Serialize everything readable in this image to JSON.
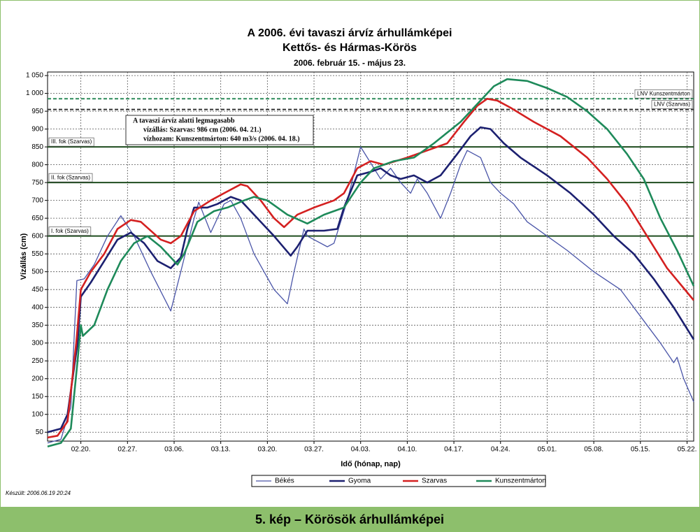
{
  "chart_data": {
    "type": "line",
    "title": [
      "A 2006. évi tavaszi árvíz árhullámképei",
      "Kettős- és Hármas-Körös"
    ],
    "subtitle": "2006. február 15. - május 23.",
    "ylabel": "Vízállás (cm)",
    "xlabel": "Idő (hónap, nap)",
    "xlim": [
      0,
      97
    ],
    "xticks": [
      {
        "value": 5,
        "label": "02.20."
      },
      {
        "value": 12,
        "label": "02.27."
      },
      {
        "value": 19,
        "label": "03.06."
      },
      {
        "value": 26,
        "label": "03.13."
      },
      {
        "value": 33,
        "label": "03.20."
      },
      {
        "value": 40,
        "label": "03.27."
      },
      {
        "value": 47,
        "label": "04.03."
      },
      {
        "value": 54,
        "label": "04.10."
      },
      {
        "value": 61,
        "label": "04.17."
      },
      {
        "value": 68,
        "label": "04.24."
      },
      {
        "value": 75,
        "label": "05.01."
      },
      {
        "value": 82,
        "label": "05.08."
      },
      {
        "value": 89,
        "label": "05.15."
      },
      {
        "value": 96,
        "label": "05.22."
      }
    ],
    "ylim": [
      25,
      1060
    ],
    "yticks": [
      50,
      100,
      150,
      200,
      250,
      300,
      350,
      400,
      450,
      500,
      550,
      600,
      650,
      700,
      750,
      800,
      850,
      900,
      950,
      {
        "value": 1000,
        "label": "1 000"
      },
      {
        "value": 1050,
        "label": "1 050"
      }
    ],
    "grid": true,
    "legend": "bottom",
    "reference_lines": [
      {
        "label": "LNV Kunszentmárton",
        "value": 985,
        "color": "#2e8b5a",
        "dashed": true,
        "side": "right"
      },
      {
        "label": "LNV (Szarvas)",
        "value": 955,
        "color": "#333333",
        "dashed": true,
        "side": "right"
      },
      {
        "label": "III. fok (Szarvas)",
        "value": 850,
        "color": "#1f4d1f",
        "dashed": false,
        "side": "left"
      },
      {
        "label": "II. fok (Szarvas)",
        "value": 750,
        "color": "#1f4d1f",
        "dashed": false,
        "side": "left"
      },
      {
        "label": "I. fok (Szarvas)",
        "value": 600,
        "color": "#1f4d1f",
        "dashed": false,
        "side": "left"
      }
    ],
    "annotation": [
      "A tavaszi árvíz alatti legmagasabb",
      "vízállás: Szarvas: 986 cm (2006. 04. 21.)",
      "vízhozam: Kunszentmárton: 640 m3/s (2006. 04. 18.)"
    ],
    "series": [
      {
        "name": "Békés",
        "color": "#4a55a8",
        "width": 1.3,
        "x": [
          0,
          2,
          3.5,
          4.4,
          5.5,
          7,
          9,
          11,
          13,
          15.5,
          18.5,
          20,
          22,
          22.7,
          24.5,
          26.5,
          27.5,
          29,
          31,
          34,
          36,
          37,
          38.5,
          39,
          42,
          43,
          45,
          47,
          48,
          50,
          51.5,
          53,
          54.5,
          55.5,
          57,
          59,
          60.5,
          62,
          63,
          65,
          66.5,
          68,
          70,
          72,
          75,
          78,
          82,
          86,
          88,
          90,
          92,
          94,
          94.5,
          95.5,
          97
        ],
        "values": [
          20,
          30,
          120,
          475,
          480,
          520,
          600,
          657,
          600,
          500,
          390,
          500,
          650,
          695,
          610,
          690,
          700,
          650,
          550,
          450,
          410,
          500,
          620,
          600,
          570,
          580,
          700,
          850,
          820,
          760,
          790,
          750,
          720,
          760,
          720,
          650,
          720,
          800,
          840,
          820,
          750,
          720,
          690,
          640,
          600,
          560,
          500,
          450,
          400,
          350,
          300,
          245,
          260,
          200,
          135
        ]
      },
      {
        "name": "Gyoma",
        "color": "#1c2070",
        "width": 2.6,
        "x": [
          0,
          2,
          3,
          4.5,
          5,
          6.5,
          8.5,
          10.5,
          12.5,
          14.5,
          16.5,
          18.5,
          20,
          21,
          22,
          24,
          25.5,
          27.5,
          29,
          31,
          34,
          36.5,
          37.5,
          39,
          41.5,
          43.5,
          44.5,
          46.5,
          48.5,
          50,
          51.5,
          53,
          55,
          57,
          59,
          61.5,
          63.5,
          65,
          66.5,
          68.5,
          71,
          75,
          78.5,
          82,
          85,
          88,
          91,
          94,
          97
        ],
        "values": [
          50,
          60,
          100,
          300,
          430,
          470,
          530,
          590,
          610,
          580,
          530,
          510,
          540,
          620,
          680,
          680,
          690,
          710,
          700,
          660,
          600,
          545,
          570,
          615,
          615,
          620,
          680,
          770,
          780,
          790,
          770,
          760,
          770,
          750,
          770,
          830,
          880,
          905,
          900,
          860,
          820,
          770,
          720,
          660,
          600,
          550,
          480,
          400,
          310
        ]
      },
      {
        "name": "Szarvas",
        "color": "#d42020",
        "width": 2.6,
        "x": [
          0,
          1.5,
          3,
          4.3,
          5,
          6.5,
          8.5,
          10.5,
          12.5,
          14,
          17,
          18.5,
          20,
          22,
          24.5,
          26.5,
          29,
          30,
          32,
          34,
          35.5,
          37.5,
          40,
          43,
          44.5,
          46.5,
          48.5,
          50.5,
          54,
          57,
          60,
          62.5,
          64.5,
          66,
          67.5,
          69.5,
          73,
          77,
          81,
          84,
          87,
          90,
          93,
          97
        ],
        "values": [
          35,
          40,
          80,
          300,
          450,
          500,
          550,
          620,
          645,
          640,
          590,
          580,
          600,
          670,
          700,
          720,
          745,
          740,
          700,
          650,
          625,
          660,
          680,
          700,
          720,
          790,
          810,
          800,
          820,
          840,
          860,
          920,
          965,
          985,
          980,
          960,
          920,
          880,
          820,
          760,
          690,
          600,
          510,
          420
        ]
      },
      {
        "name": "Kunszentmárton",
        "color": "#1e8a5a",
        "width": 2.6,
        "x": [
          0,
          2,
          3.5,
          4.5,
          5,
          5.3,
          7,
          9,
          11,
          13,
          15,
          17,
          19.5,
          20.5,
          22.5,
          25,
          27,
          29.5,
          31,
          33,
          36,
          39,
          41.5,
          44.5,
          47,
          49,
          52,
          55,
          58,
          62,
          65,
          67,
          69,
          72,
          75,
          78,
          81,
          84,
          87,
          89.5,
          92,
          94.5,
          97
        ],
        "values": [
          10,
          20,
          60,
          250,
          350,
          320,
          350,
          450,
          530,
          580,
          600,
          570,
          520,
          550,
          640,
          670,
          680,
          700,
          710,
          700,
          660,
          635,
          660,
          680,
          750,
          790,
          810,
          820,
          860,
          920,
          980,
          1020,
          1040,
          1035,
          1015,
          990,
          950,
          900,
          830,
          760,
          650,
          560,
          460
        ]
      }
    ],
    "footer": "Készült: 2006.06.19 20:24",
    "caption": "5. kép – Körösök árhullámképei"
  }
}
